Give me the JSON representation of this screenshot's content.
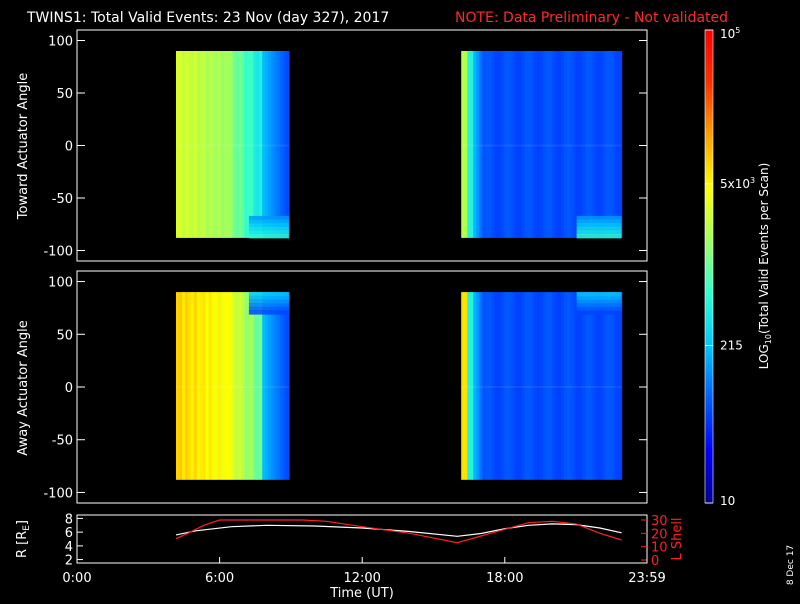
{
  "title": {
    "main": "TWINS1: Total Valid Events: 23 Nov (day 327), 2017",
    "note": "NOTE: Data Preliminary - Not validated",
    "note_color": "#ff2a2a"
  },
  "stamp": "8 Dec 17",
  "chart_data": [
    {
      "type": "heatmap",
      "ylabel": "Toward Actuator Angle",
      "xlim": [
        "0:00",
        "23:59"
      ],
      "ylim": [
        -110,
        110
      ],
      "yticks": [
        "100",
        "50",
        "0",
        "-50",
        "-100"
      ],
      "angle_range": [
        -88,
        90
      ],
      "blocks": [
        {
          "start": "04:10",
          "end": "08:55",
          "level": "mid-high (~5x10^3, yellow-green) on left, falling to ~215 (blue) on right"
        },
        {
          "start": "16:10",
          "end": "22:55",
          "level": "low (~100, blue) with a brief yellow edge at start"
        }
      ]
    },
    {
      "type": "heatmap",
      "ylabel": "Away Actuator Angle",
      "xlim": [
        "0:00",
        "23:59"
      ],
      "ylim": [
        -110,
        110
      ],
      "yticks": [
        "100",
        "50",
        "0",
        "-50",
        "-100"
      ],
      "angle_range": [
        -88,
        90
      ],
      "blocks": [
        {
          "start": "04:10",
          "end": "08:55",
          "level": "high (~10^4, orange) on left, falling to ~215 (blue) on right"
        },
        {
          "start": "16:10",
          "end": "22:55",
          "level": "low (~100, blue) with a brief orange edge at start"
        }
      ]
    },
    {
      "type": "line",
      "xlabel": "Time (UT)",
      "x_ticks": [
        "0:00",
        "6:00",
        "12:00",
        "18:00",
        "23:59"
      ],
      "ylabel_left": "R [R",
      "ylabel_left_sub": "E",
      "ylabel_left_end": "]",
      "ylabel_right": "L Shell",
      "left_ylim": [
        1.5,
        8.5
      ],
      "left_ticks": [
        "8",
        "6",
        "4",
        "2"
      ],
      "right_ylim": [
        0,
        30
      ],
      "right_ticks": [
        "30",
        "20",
        "10",
        "0"
      ],
      "series": [
        {
          "name": "R",
          "color": "#ffffff",
          "x": [
            "04:10",
            "05:00",
            "06:30",
            "08:00",
            "10:00",
            "12:00",
            "14:00",
            "16:00",
            "17:00",
            "18:00",
            "19:00",
            "20:00",
            "21:00",
            "22:00",
            "22:55"
          ],
          "y": [
            5.6,
            6.2,
            6.8,
            7.0,
            6.9,
            6.6,
            6.1,
            5.4,
            5.8,
            6.5,
            7.0,
            7.2,
            7.1,
            6.6,
            5.9
          ]
        },
        {
          "name": "L Shell",
          "color": "#ff2020",
          "x": [
            "04:10",
            "04:40",
            "05:20",
            "06:00",
            "09:30",
            "10:30",
            "12:00",
            "14:00",
            "16:00",
            "17:00",
            "18:00",
            "19:00",
            "20:00",
            "21:00",
            "22:00",
            "22:55"
          ],
          "y": [
            16,
            20,
            26,
            30,
            30,
            29,
            25,
            20,
            13,
            18,
            23,
            28,
            29,
            27,
            20,
            15
          ]
        }
      ]
    }
  ],
  "colorbar": {
    "label_pre": "LOG",
    "label_sub": "10",
    "label_post": "(Total Valid Events per Scan)",
    "ticks": [
      {
        "label": "10",
        "value": 10
      },
      {
        "label": "215",
        "value": 215
      },
      {
        "label": "5x10",
        "sup": "3",
        "value": 5000
      },
      {
        "label": "10",
        "sup": "5",
        "value": 100000
      }
    ],
    "range": [
      10,
      100000
    ],
    "colors": [
      "#00008c",
      "#0000ff",
      "#0060ff",
      "#00c8ff",
      "#30ffd0",
      "#a0ff60",
      "#ffff00",
      "#ffa000",
      "#ff3000",
      "#ff0000"
    ]
  }
}
